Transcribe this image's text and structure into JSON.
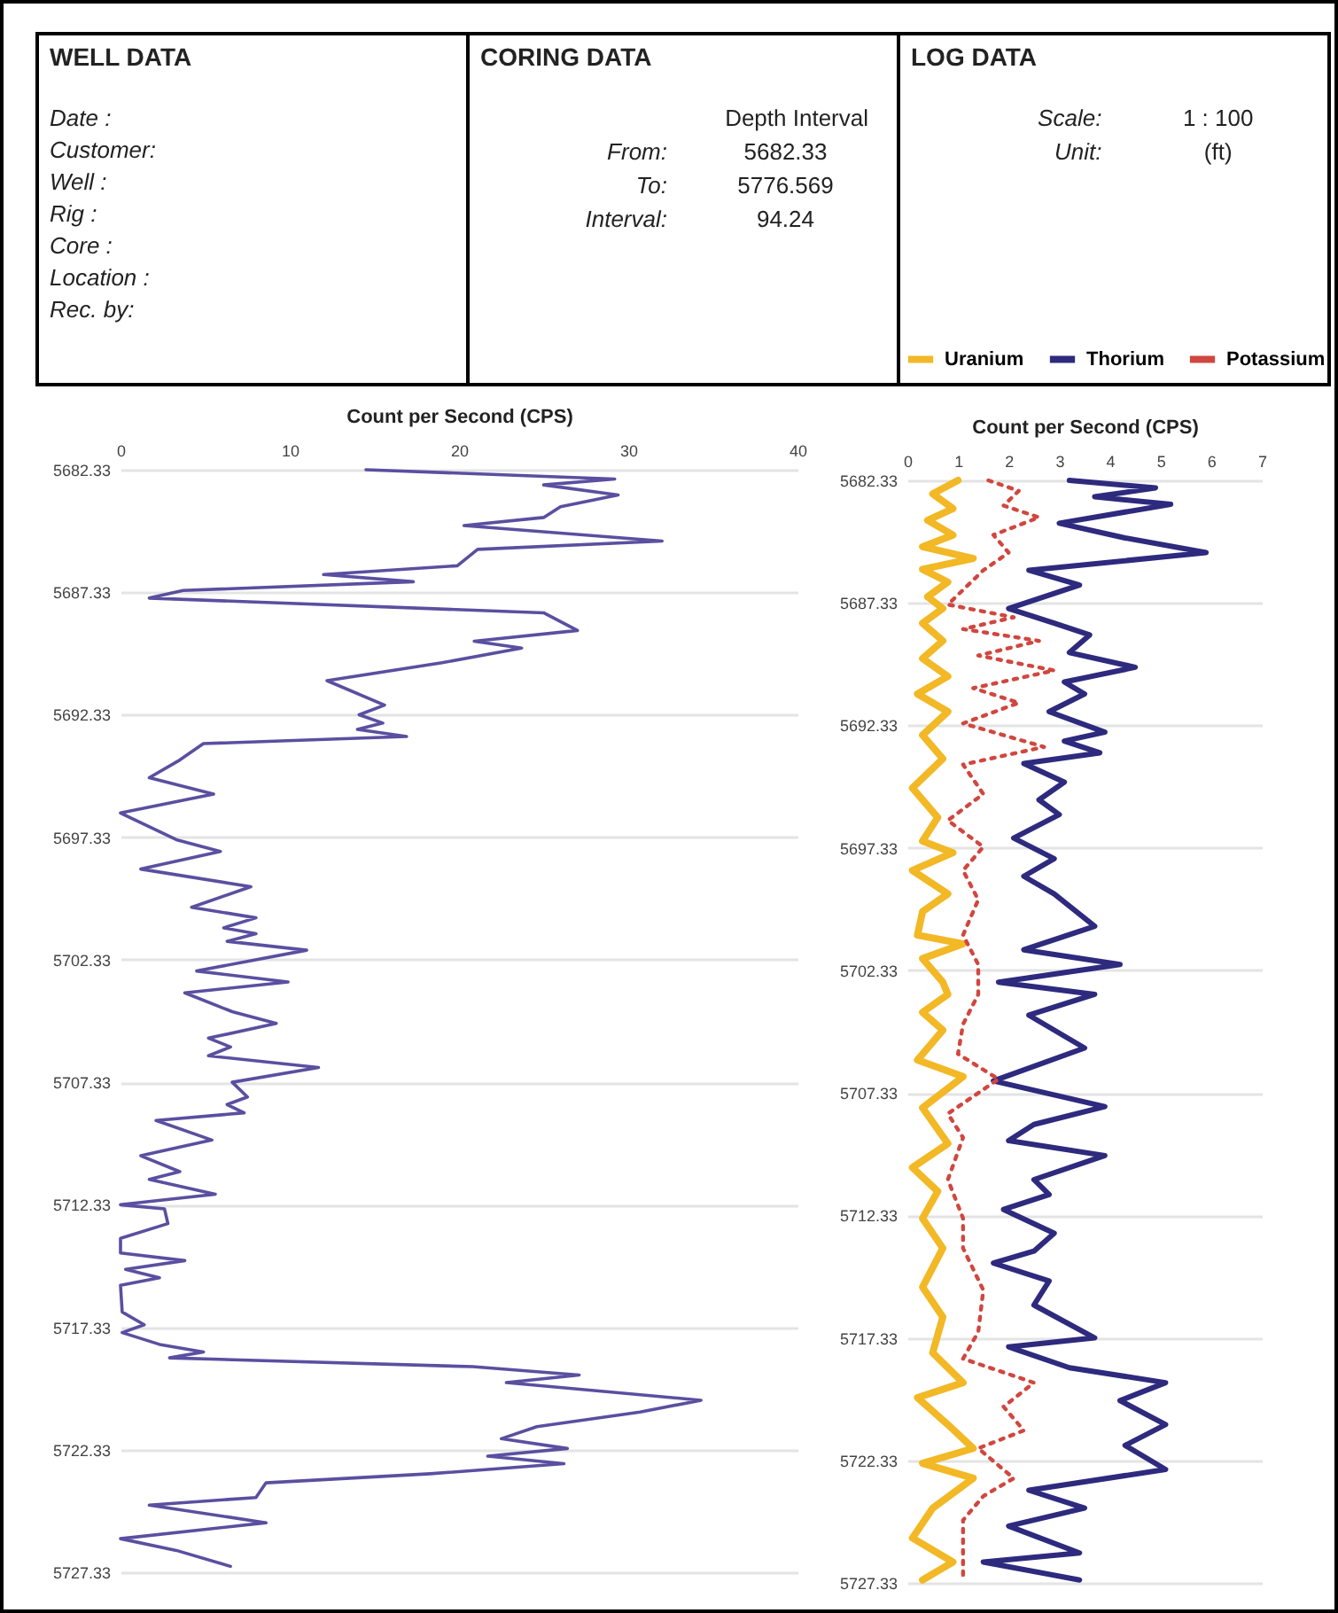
{
  "chart_data": [
    {
      "type": "other",
      "title": "WELL DATA",
      "annotations": [
        "Date :",
        "Customer:",
        "Well :",
        "Rig :",
        "Core :",
        "Location :",
        "Rec. by:"
      ]
    },
    {
      "type": "other",
      "title": "CORING DATA",
      "annotations": [
        "Depth Interval",
        "From:",
        "5682.33",
        "To:",
        "5776.569",
        "Interval:",
        "94.24"
      ]
    },
    {
      "type": "other",
      "title": "LOG DATA",
      "annotations": [
        "Scale:",
        "1 : 100",
        "Unit:",
        "(ft)"
      ]
    },
    {
      "type": "line",
      "orientation": "horizontal",
      "xlabel": "Count per  Second (CPS)",
      "xlim": [
        0,
        40
      ],
      "xticks": [
        0,
        10,
        20,
        30,
        40
      ],
      "ylim": [
        5727.33,
        5682.33
      ],
      "yticks": [
        5682.33,
        5687.33,
        5692.33,
        5697.33,
        5702.33,
        5707.33,
        5712.33,
        5717.33,
        5722.33,
        5727.33
      ],
      "grid": "y",
      "series": [
        {
          "color": "#5a4fa0",
          "x": [
            5682.33,
            5682.71,
            5682.95,
            5683.36,
            5683.84,
            5684.28,
            5684.61,
            5685.24,
            5685.58,
            5686.25,
            5686.61,
            5686.9,
            5687.26,
            5687.57,
            5688.17,
            5688.89,
            5689.33,
            5689.61,
            5690.21,
            5690.94,
            5691.94,
            5692.33,
            5692.67,
            5692.93,
            5693.22,
            5693.51,
            5694.18,
            5694.9,
            5695.57,
            5696.34,
            5697.43,
            5697.91,
            5698.63,
            5699.35,
            5700.19,
            5700.62,
            5701.03,
            5701.27,
            5701.58,
            5701.94,
            5702.79,
            5703.24,
            5703.68,
            5704.45,
            5704.93,
            5705.53,
            5705.89,
            5706.25,
            5706.73,
            5707.33,
            5707.93,
            5708.24,
            5708.58,
            5708.89,
            5709.69,
            5710.33,
            5710.98,
            5711.3,
            5711.9,
            5712.33,
            5712.5,
            5713.1,
            5713.7,
            5714.3,
            5714.61,
            5714.97,
            5715.31,
            5715.62,
            5716.71,
            5717.23,
            5717.55,
            5718.03,
            5718.34,
            5718.58,
            5718.94,
            5719.28,
            5719.59,
            5720.31,
            5720.79,
            5721.39,
            5721.88,
            5722.28,
            5722.59,
            5722.9,
            5723.31,
            5723.68,
            5724.28,
            5724.59,
            5725.31,
            5725.96,
            5726.44,
            5727.09
          ],
          "values": [
            14.5,
            29.2,
            25,
            29.4,
            26,
            25,
            20.3,
            32,
            21.1,
            19.9,
            12,
            17.3,
            3.7,
            1.7,
            25,
            27,
            20.9,
            23.7,
            19,
            12.2,
            15.6,
            14.1,
            15.5,
            14,
            16.9,
            4.9,
            3.5,
            1.7,
            5.5,
            0,
            3.3,
            5.9,
            1.2,
            7.7,
            4.2,
            8,
            6.1,
            8,
            6.3,
            11,
            4.5,
            9.9,
            3.8,
            6.6,
            9.2,
            5.2,
            6.5,
            5.2,
            11.7,
            6.6,
            7.5,
            6.3,
            7.3,
            2.1,
            5.4,
            1.2,
            3.5,
            1.7,
            5.6,
            0,
            2.6,
            2.8,
            0,
            0,
            3.8,
            0.3,
            2.3,
            0,
            0.1,
            1.4,
            0.1,
            2.3,
            4.9,
            2.9,
            20.8,
            27.1,
            22.8,
            34.3,
            30.7,
            24.6,
            22.5,
            26.4,
            21.7,
            26.2,
            18.3,
            8.6,
            8,
            1.7,
            8.6,
            0,
            3.3,
            6.5
          ]
        }
      ]
    },
    {
      "type": "line",
      "orientation": "horizontal",
      "xlabel": "Count per  Second (CPS)",
      "xlim": [
        0,
        7
      ],
      "xticks": [
        0,
        1,
        2,
        3,
        4,
        5,
        6,
        7
      ],
      "ylim": [
        5727.33,
        5682.33
      ],
      "yticks": [
        5682.33,
        5687.33,
        5692.33,
        5697.33,
        5702.33,
        5707.33,
        5712.33,
        5717.33,
        5722.33,
        5727.33
      ],
      "grid": "y",
      "legend": "top",
      "series": [
        {
          "name": "Uranium",
          "color": "#f2b825",
          "x": [
            5682.33,
            5682.88,
            5683.48,
            5683.96,
            5684.56,
            5685.04,
            5685.52,
            5685.96,
            5686.48,
            5687.08,
            5687.56,
            5688.16,
            5688.88,
            5689.6,
            5690.33,
            5691.05,
            5691.77,
            5692.73,
            5693.69,
            5694.89,
            5696.09,
            5697.05,
            5697.53,
            5698.25,
            5699.21,
            5699.93,
            5700.89,
            5701.25,
            5701.85,
            5702.81,
            5703.31,
            5704.04,
            5704.77,
            5705.99,
            5706.67,
            5707.94,
            5709.4,
            5710.38,
            5711.35,
            5712.45,
            5713.67,
            5715.26,
            5716.48,
            5717.94,
            5719.16,
            5719.77,
            5720.87,
            5721.84,
            5722.45,
            5723.06,
            5724.28,
            5725.5,
            5726.48,
            5727.21
          ],
          "values": [
            1.0,
            0.5,
            0.9,
            0.4,
            0.9,
            0.3,
            1.3,
            0.3,
            0.8,
            0.4,
            0.7,
            0.3,
            0.7,
            0.3,
            0.8,
            0.2,
            0.8,
            0.3,
            0.7,
            0.1,
            0.6,
            0.3,
            0.9,
            0.1,
            0.8,
            0.3,
            0.2,
            1.1,
            0.3,
            0.7,
            0.8,
            0.3,
            0.7,
            0.2,
            1.1,
            0.3,
            0.8,
            0.1,
            0.6,
            0.3,
            0.7,
            0.3,
            0.7,
            0.5,
            1.1,
            0.2,
            0.8,
            1.3,
            0.3,
            1.3,
            0.5,
            0.1,
            0.9,
            0.3
          ]
        },
        {
          "name": "Thorium",
          "color": "#2e2a7e",
          "x": [
            5682.33,
            5682.64,
            5683.0,
            5683.31,
            5684.08,
            5684.68,
            5685.28,
            5686.0,
            5686.6,
            5687.56,
            5688.16,
            5688.64,
            5689.36,
            5689.96,
            5690.56,
            5691.05,
            5691.77,
            5692.61,
            5692.97,
            5693.45,
            5693.89,
            5694.65,
            5695.37,
            5695.97,
            5696.93,
            5697.77,
            5698.49,
            5699.21,
            5700.53,
            5701.49,
            5702.09,
            5702.81,
            5703.31,
            5704.16,
            5705.5,
            5706.84,
            5707.89,
            5708.62,
            5709.28,
            5709.89,
            5710.87,
            5711.48,
            5712.09,
            5713.06,
            5713.79,
            5714.28,
            5715.01,
            5715.99,
            5717.33,
            5717.7,
            5718.55,
            5719.16,
            5719.89,
            5720.87,
            5721.72,
            5722.7,
            5723.55,
            5724.28,
            5725.01,
            5726.11,
            5726.48,
            5727.21
          ],
          "values": [
            3.2,
            4.9,
            3.7,
            5.2,
            3.0,
            4.3,
            5.9,
            2.4,
            3.4,
            2.0,
            2.9,
            3.6,
            3.2,
            4.5,
            3.1,
            3.5,
            2.8,
            3.9,
            3.1,
            3.8,
            2.3,
            3.1,
            2.6,
            3.0,
            2.1,
            2.9,
            2.3,
            2.9,
            3.7,
            2.3,
            4.2,
            1.8,
            3.7,
            2.4,
            3.5,
            1.7,
            3.9,
            2.5,
            2.0,
            3.9,
            2.5,
            2.8,
            1.9,
            2.9,
            2.5,
            1.7,
            2.8,
            2.5,
            3.7,
            2.0,
            3.2,
            5.1,
            4.2,
            5.1,
            4.3,
            5.1,
            2.4,
            3.5,
            2.0,
            3.4,
            1.5,
            3.4
          ]
        },
        {
          "name": "Potassium",
          "color": "#d0473f",
          "line_style": "dotted",
          "x": [
            5682.33,
            5682.76,
            5683.36,
            5683.84,
            5684.56,
            5685.28,
            5686.0,
            5687.4,
            5687.92,
            5688.4,
            5688.88,
            5689.48,
            5690.09,
            5690.81,
            5691.41,
            5692.25,
            5693.21,
            5693.93,
            5695.13,
            5696.21,
            5697.29,
            5698.25,
            5699.45,
            5700.89,
            5702.09,
            5703.31,
            5704.53,
            5705.74,
            5706.77,
            5708.18,
            5709.16,
            5710.87,
            5712.45,
            5713.67,
            5715.38,
            5717.09,
            5718.18,
            5719.16,
            5720.14,
            5721.11,
            5721.84,
            5723.06,
            5723.79,
            5724.77,
            5726.23,
            5727.21
          ],
          "values": [
            1.6,
            2.2,
            1.9,
            2.6,
            1.7,
            2.0,
            1.5,
            0.8,
            2.1,
            1.1,
            2.6,
            1.4,
            2.9,
            1.3,
            2.2,
            1.1,
            2.7,
            1.1,
            1.5,
            0.8,
            1.5,
            1.1,
            1.4,
            1.1,
            1.4,
            1.4,
            1.1,
            1.0,
            1.8,
            0.8,
            1.1,
            0.8,
            1.1,
            1.1,
            1.5,
            1.4,
            1.1,
            2.5,
            1.9,
            2.3,
            1.4,
            2.1,
            1.5,
            1.1,
            1.1,
            1.1
          ]
        }
      ]
    }
  ]
}
